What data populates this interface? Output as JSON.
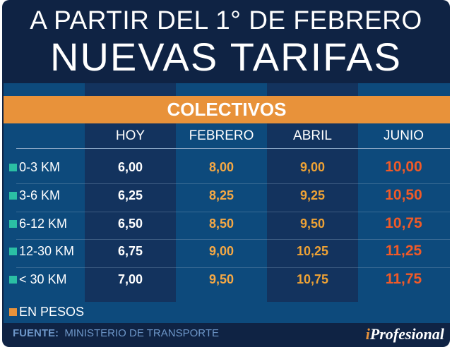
{
  "header": {
    "line1": "A PARTIR DEL 1° DE FEBRERO",
    "line2": "NUEVAS TARIFAS"
  },
  "section": "COLECTIVOS",
  "chart_data": {
    "type": "table",
    "columns": [
      "HOY",
      "FEBRERO",
      "ABRIL",
      "JUNIO"
    ],
    "rows": [
      {
        "label": "0-3 KM",
        "values": [
          "6,00",
          "8,00",
          "9,00",
          "10,00"
        ]
      },
      {
        "label": "3-6 KM",
        "values": [
          "6,25",
          "8,25",
          "9,25",
          "10,50"
        ]
      },
      {
        "label": "6-12 KM",
        "values": [
          "6,50",
          "8,50",
          "9,50",
          "10,75"
        ]
      },
      {
        "label": "12-30 KM",
        "values": [
          "6,75",
          "9,00",
          "10,25",
          "11,25"
        ]
      },
      {
        "label": "< 30 KM",
        "values": [
          "7,00",
          "9,50",
          "10,75",
          "11,75"
        ]
      }
    ],
    "column_colors": [
      "#ffffff",
      "#f5a844",
      "#eea235",
      "#f05a28"
    ]
  },
  "legend": {
    "label": "EN PESOS",
    "color": "#e8923a"
  },
  "row_marker_color": "#2bbfa4",
  "footer": {
    "source_label": "FUENTE:",
    "source": "MINISTERIO DE TRANSPORTE",
    "logo_i": "i",
    "logo_rest": "Profesional"
  }
}
